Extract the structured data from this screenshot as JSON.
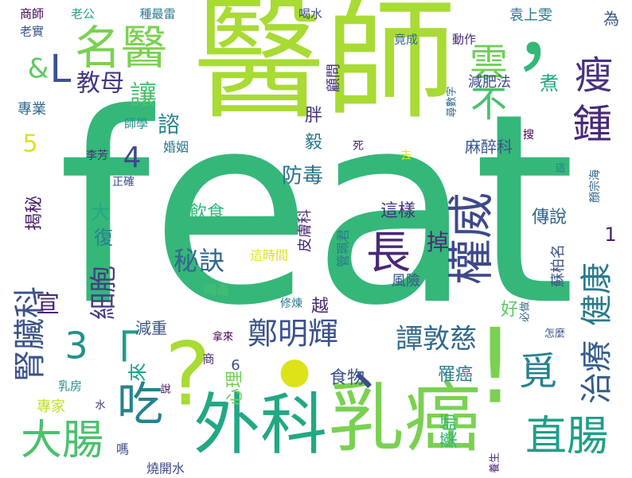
{
  "word_cloud": {
    "big": [
      {
        "id": "feat",
        "text": "feat",
        "color": "#35b779"
      },
      {
        "id": "yishi",
        "text": "醫師",
        "color": "#a8db34"
      },
      {
        "id": "waike",
        "text": "外科",
        "color": "#22a884"
      },
      {
        "id": "ruai",
        "text": "乳癌",
        "color": "#7ad151"
      },
      {
        "id": "q",
        "text": "?",
        "color": "#a8db34"
      },
      {
        "id": "dot",
        "text": "•",
        "color": "#dde318"
      },
      {
        "id": "excl",
        "text": "!",
        "color": "#7ad151"
      },
      {
        "id": "comma",
        "text": "，",
        "color": "#35b779"
      }
    ],
    "medium": [
      {
        "id": "mingyi",
        "text": "名醫",
        "color": "#7ad151"
      },
      {
        "id": "chi",
        "text": "吃",
        "color": "#26828e"
      },
      {
        "id": "dachang",
        "text": "大腸",
        "color": "#4ac16d"
      },
      {
        "id": "zhichang",
        "text": "直腸",
        "color": "#1f9e89"
      },
      {
        "id": "quanwei",
        "text": "權威",
        "color": "#3e4989"
      },
      {
        "id": "chang",
        "text": "長",
        "color": "#482878"
      },
      {
        "id": "zhong",
        "text": "鍾",
        "color": "#482878"
      },
      {
        "id": "shou",
        "text": "瘦",
        "color": "#46327e"
      },
      {
        "id": "yun",
        "text": "雲",
        "color": "#6ece58"
      },
      {
        "id": "bu",
        "text": "不",
        "color": "#4ac16d"
      },
      {
        "id": "zhengminghui",
        "text": "鄭明輝",
        "color": "#3b528b"
      },
      {
        "id": "tandunci",
        "text": "譚敦慈",
        "color": "#31688e"
      },
      {
        "id": "mi",
        "text": "覓",
        "color": "#26828e"
      },
      {
        "id": "mijue",
        "text": "秘訣",
        "color": "#31688e"
      },
      {
        "id": "zhiliao",
        "text": "治療",
        "color": "#365c8d"
      },
      {
        "id": "jiankang",
        "text": "健康",
        "color": "#2a788e"
      },
      {
        "id": "shenzang",
        "text": "腎臟科",
        "color": "#3b528b"
      },
      {
        "id": "jiaomu",
        "text": "教母",
        "color": "#453781"
      },
      {
        "id": "rang",
        "text": "讓",
        "color": "#4ac16d"
      },
      {
        "id": "dian",
        "text": "、",
        "color": "#3e4989"
      },
      {
        "id": "bracket",
        "text": "「",
        "color": "#1f9e89"
      },
      {
        "id": "three",
        "text": "3",
        "color": "#21918c"
      }
    ],
    "small": [
      {
        "id": "shangshi",
        "text": "商師",
        "color": "#440154"
      },
      {
        "id": "laogong",
        "text": "老公",
        "color": "#22a884"
      },
      {
        "id": "zhongzuilei",
        "text": "種最雷",
        "color": "#2a788e"
      },
      {
        "id": "heshui",
        "text": "喝水",
        "color": "#3e4989"
      },
      {
        "id": "laoshi",
        "text": "老實",
        "color": "#3b528b"
      },
      {
        "id": "jingcheng",
        "text": "竟成",
        "color": "#31688e"
      },
      {
        "id": "dongzuo",
        "text": "動作",
        "color": "#482878"
      },
      {
        "id": "yuanshangwen",
        "text": "袁上雯",
        "color": "#2a788e"
      },
      {
        "id": "wei",
        "text": "為",
        "color": "#3b528b"
      },
      {
        "id": "amp",
        "text": "&",
        "color": "#5ec962"
      },
      {
        "id": "lbracket",
        "text": "L",
        "color": "#3b528b"
      },
      {
        "id": "five",
        "text": "5",
        "color": "#dde318"
      },
      {
        "id": "four",
        "text": "4",
        "color": "#3e4989"
      },
      {
        "id": "zhuanye",
        "text": "專業",
        "color": "#31688e"
      },
      {
        "id": "yu",
        "text": "諮",
        "color": "#26828e"
      },
      {
        "id": "pang",
        "text": "胖",
        "color": "#46327e"
      },
      {
        "id": "guwen",
        "text": "顧問",
        "color": "#472d7b"
      },
      {
        "id": "jianfeifa",
        "text": "減肥法",
        "color": "#3e4989"
      },
      {
        "id": "zhu",
        "text": "煮",
        "color": "#22a884"
      },
      {
        "id": "xunshu",
        "text": "尋數字",
        "color": "#31688e"
      },
      {
        "id": "shixue",
        "text": "師學",
        "color": "#21918c"
      },
      {
        "id": "hunyin",
        "text": "婚姻",
        "color": "#2a788e"
      },
      {
        "id": "yi",
        "text": "毅",
        "color": "#2a788e"
      },
      {
        "id": "mazuike",
        "text": "麻醉科",
        "color": "#39568c"
      },
      {
        "id": "lifang",
        "text": "李芳",
        "color": "#472d7b"
      },
      {
        "id": "si",
        "text": "死",
        "color": "#481f71"
      },
      {
        "id": "qu",
        "text": "去",
        "color": "#dde318"
      },
      {
        "id": "sou",
        "text": "搜",
        "color": "#440154"
      },
      {
        "id": "zheng",
        "text": "正確",
        "color": "#3b528b"
      },
      {
        "id": "fangdu",
        "text": "防毒",
        "color": "#2c728e"
      },
      {
        "id": "zhe",
        "text": "這",
        "color": "#287d8e"
      },
      {
        "id": "yanzonghai",
        "text": "顏宗海",
        "color": "#33638d"
      },
      {
        "id": "jiemi",
        "text": "揭秘",
        "color": "#481a6c"
      },
      {
        "id": "yinshi",
        "text": "飲食",
        "color": "#35b779"
      },
      {
        "id": "zheyang",
        "text": "這樣",
        "color": "#46327e"
      },
      {
        "id": "da",
        "text": "大",
        "color": "#22a884"
      },
      {
        "id": "fu",
        "text": "復",
        "color": "#26828e"
      },
      {
        "id": "pifuke",
        "text": "皮膚科",
        "color": "#482878"
      },
      {
        "id": "diao",
        "text": "掉",
        "color": "#472d7b"
      },
      {
        "id": "chuanshuo",
        "text": "傳說",
        "color": "#33638d"
      },
      {
        "id": "sub1",
        "text": "1",
        "color": "#481f71"
      },
      {
        "id": "xibao",
        "text": "細胞",
        "color": "#433e85"
      },
      {
        "id": "guanpeijun",
        "text": "管珮君",
        "color": "#2a788e"
      },
      {
        "id": "zheshijian",
        "text": "這時間",
        "color": "#dde318"
      },
      {
        "id": "fengxian",
        "text": "風險",
        "color": "#3b528b"
      },
      {
        "id": "subohan",
        "text": "蘇柏名",
        "color": "#3b528b"
      },
      {
        "id": "bizuo",
        "text": "必做",
        "color": "#31688e"
      },
      {
        "id": "xuan",
        "text": "宣",
        "color": "#482878"
      },
      {
        "id": "hedu",
        "text": "喝毒",
        "color": "#4ac16d"
      },
      {
        "id": "xiulian",
        "text": "修煉",
        "color": "#2a788e"
      },
      {
        "id": "yue",
        "text": "越",
        "color": "#482878"
      },
      {
        "id": "hao",
        "text": "好",
        "color": "#5ec962"
      },
      {
        "id": "jianzhong",
        "text": "減重",
        "color": "#3b528b"
      },
      {
        "id": "nalai",
        "text": "拿來",
        "color": "#440154"
      },
      {
        "id": "zenme",
        "text": "怎麼",
        "color": "#3b528b"
      },
      {
        "id": "shang",
        "text": "商",
        "color": "#482878"
      },
      {
        "id": "six",
        "text": "6",
        "color": "#3e4989"
      },
      {
        "id": "lai",
        "text": "來",
        "color": "#1f9e89"
      },
      {
        "id": "xinli",
        "text": "心理",
        "color": "#73d056"
      },
      {
        "id": "shiwu",
        "text": "食物",
        "color": "#3b528b"
      },
      {
        "id": "luoai",
        "text": "罹癌",
        "color": "#287d8e"
      },
      {
        "id": "rufang",
        "text": "乳房",
        "color": "#21918c"
      },
      {
        "id": "shuo",
        "text": "說",
        "color": "#440154"
      },
      {
        "id": "zhuanjia",
        "text": "專家",
        "color": "#bddf26"
      },
      {
        "id": "shui",
        "text": "水",
        "color": "#472d7b"
      },
      {
        "id": "yaoshi",
        "text": "藥師",
        "color": "#35b779"
      },
      {
        "id": "ma",
        "text": "嗎",
        "color": "#3e4989"
      },
      {
        "id": "shaokaishui",
        "text": "燒開水",
        "color": "#3e4989"
      },
      {
        "id": "yangsheng",
        "text": "養生",
        "color": "#482878"
      }
    ]
  }
}
